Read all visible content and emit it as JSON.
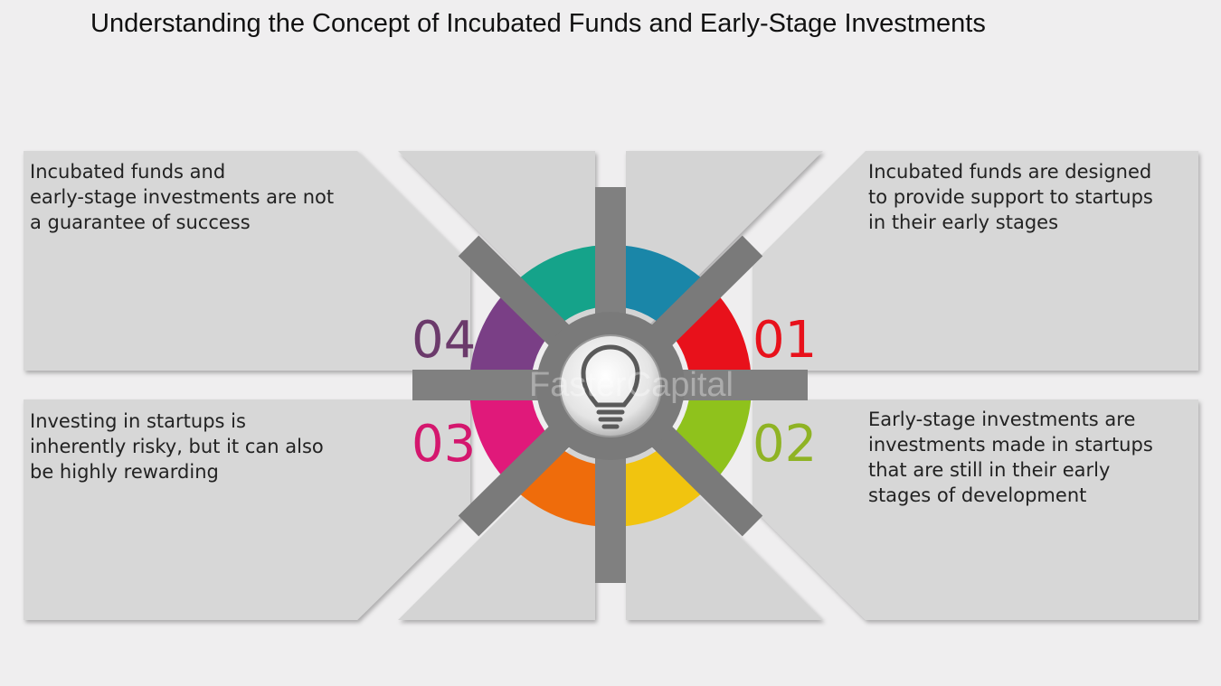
{
  "title": "Understanding the Concept of Incubated Funds and Early-Stage Investments",
  "watermark": "FasterCapital",
  "center_icon": "lightbulb-icon",
  "steps": [
    {
      "number": "01",
      "color": "#e8111b",
      "lines": [
        "Incubated funds are designed",
        "to provide support to startups",
        "in their early stages"
      ]
    },
    {
      "number": "02",
      "color": "#8fb324",
      "lines": [
        "Early-stage investments are",
        "investments made in startups",
        "that are still in their early",
        "stages of development"
      ]
    },
    {
      "number": "03",
      "color": "#d4176e",
      "lines": [
        "Investing in startups is",
        "inherently risky, but it can also",
        "be highly rewarding"
      ]
    },
    {
      "number": "04",
      "color": "#6b3a6b",
      "lines": [
        "Incubated funds and",
        "early-stage investments are not",
        "a guarantee of success"
      ]
    }
  ],
  "ring_colors": {
    "top_right": "#1a86a8",
    "right_upper": "#e8111b",
    "right_lower": "#8fc21c",
    "bottom_right": "#f1c40f",
    "bottom_left": "#ef6c0b",
    "left_lower": "#e0197a",
    "left_upper": "#7a3f86",
    "top_left": "#15a38a"
  }
}
